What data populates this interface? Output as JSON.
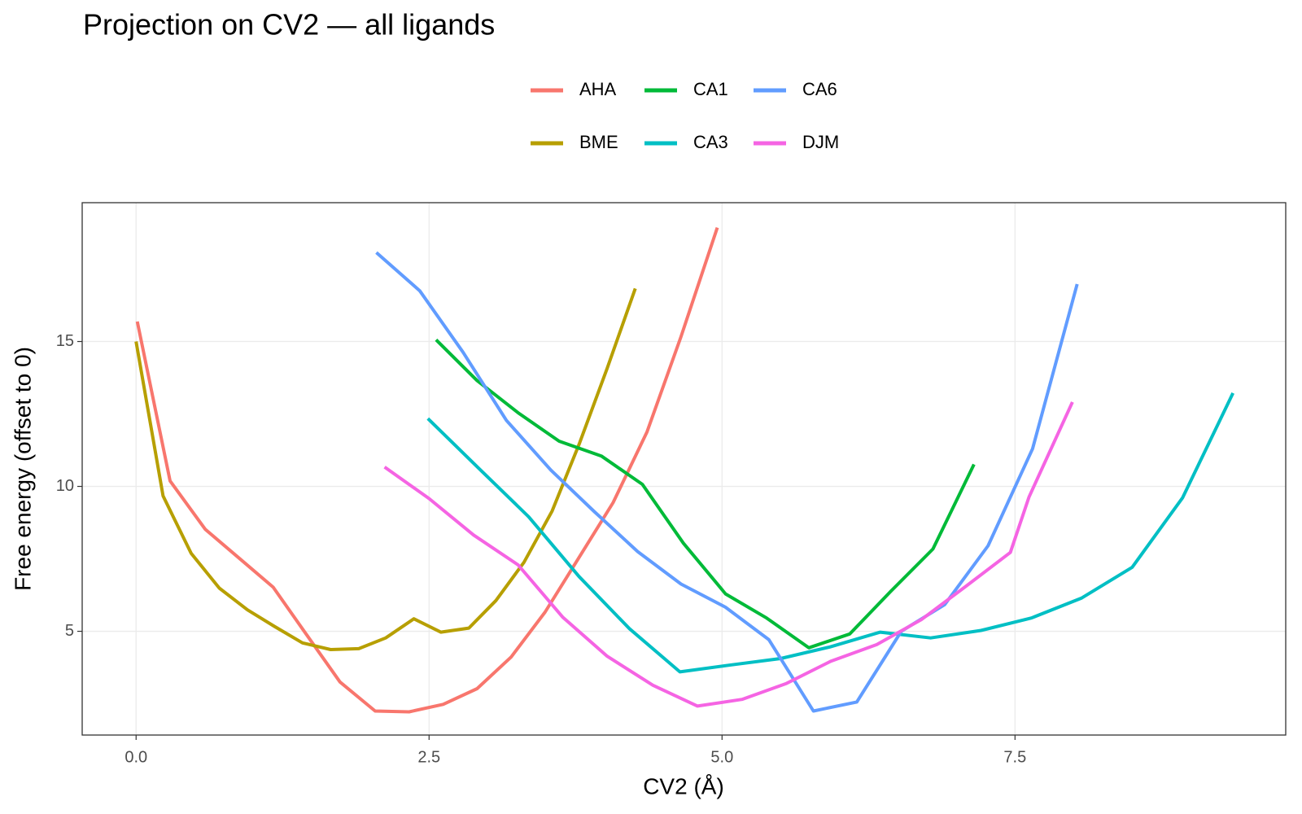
{
  "chart_data": {
    "type": "line",
    "title": "Projection on CV2 — all ligands",
    "xlabel": "CV2 (Å)",
    "ylabel": "Free energy (offset to 0)",
    "xlim": [
      -0.46,
      9.81
    ],
    "ylim": [
      1.42,
      19.79
    ],
    "xticks": [
      {
        "value": 0,
        "label": "0.0"
      },
      {
        "value": 2.5,
        "label": "2.5"
      },
      {
        "value": 5,
        "label": "5.0"
      },
      {
        "value": 7.5,
        "label": "7.5"
      }
    ],
    "yticks": [
      5,
      10,
      15
    ],
    "grid": true,
    "series": [
      {
        "name": "AHA",
        "color": "#F8766D",
        "x": [
          0.01,
          0.29,
          0.59,
          0.88,
          1.17,
          1.45,
          1.74,
          2.04,
          2.33,
          2.62,
          2.91,
          3.2,
          3.49,
          3.78,
          4.07,
          4.36,
          4.65,
          4.96
        ],
        "values": [
          15.69,
          10.19,
          8.52,
          7.52,
          6.52,
          4.91,
          3.25,
          2.25,
          2.22,
          2.48,
          3.02,
          4.11,
          5.66,
          7.55,
          9.44,
          11.88,
          15.17,
          18.93
        ]
      },
      {
        "name": "BME",
        "color": "#B79F00",
        "x": [
          0,
          0.23,
          0.47,
          0.71,
          0.95,
          1.18,
          1.42,
          1.66,
          1.9,
          2.13,
          2.37,
          2.6,
          2.84,
          3.07,
          3.31,
          3.55,
          3.78,
          4.02,
          4.26
        ],
        "values": [
          15.0,
          9.67,
          7.69,
          6.49,
          5.74,
          5.17,
          4.6,
          4.37,
          4.4,
          4.77,
          5.43,
          4.97,
          5.11,
          6.06,
          7.38,
          9.15,
          11.45,
          14.08,
          16.83
        ]
      },
      {
        "name": "CA1",
        "color": "#00BA38",
        "x": [
          2.56,
          2.91,
          3.26,
          3.61,
          3.97,
          4.32,
          4.67,
          5.03,
          5.38,
          5.74,
          6.09,
          6.44,
          6.8,
          7.15
        ],
        "values": [
          15.06,
          13.65,
          12.54,
          11.56,
          11.05,
          10.07,
          8.04,
          6.29,
          5.46,
          4.43,
          4.91,
          6.38,
          7.84,
          10.76
        ]
      },
      {
        "name": "CA3",
        "color": "#00BFC4",
        "x": [
          2.49,
          2.92,
          3.35,
          3.78,
          4.21,
          4.64,
          5.06,
          5.5,
          5.92,
          6.35,
          6.78,
          7.21,
          7.64,
          8.07,
          8.5,
          8.93,
          9.36
        ],
        "values": [
          12.34,
          10.64,
          8.95,
          6.89,
          5.09,
          3.6,
          3.83,
          4.06,
          4.46,
          4.97,
          4.77,
          5.03,
          5.46,
          6.15,
          7.21,
          9.61,
          13.22
        ]
      },
      {
        "name": "CA6",
        "color": "#619CFF",
        "x": [
          2.05,
          2.42,
          2.79,
          3.16,
          3.54,
          3.91,
          4.28,
          4.65,
          5.03,
          5.4,
          5.78,
          6.15,
          6.53,
          6.9,
          7.27,
          7.65,
          8.03
        ],
        "values": [
          18.07,
          16.75,
          14.63,
          12.28,
          10.56,
          9.13,
          7.75,
          6.63,
          5.83,
          4.71,
          2.25,
          2.56,
          5.0,
          5.92,
          7.95,
          11.3,
          16.98
        ]
      },
      {
        "name": "DJM",
        "color": "#F564E3",
        "x": [
          2.12,
          2.5,
          2.88,
          3.26,
          3.64,
          4.02,
          4.41,
          4.79,
          5.17,
          5.55,
          5.93,
          6.32,
          6.7,
          7.08,
          7.46,
          7.62,
          7.99
        ],
        "values": [
          10.67,
          9.58,
          8.32,
          7.29,
          5.49,
          4.14,
          3.14,
          2.42,
          2.65,
          3.2,
          3.97,
          4.54,
          5.4,
          6.55,
          7.72,
          9.64,
          12.91
        ]
      }
    ]
  }
}
